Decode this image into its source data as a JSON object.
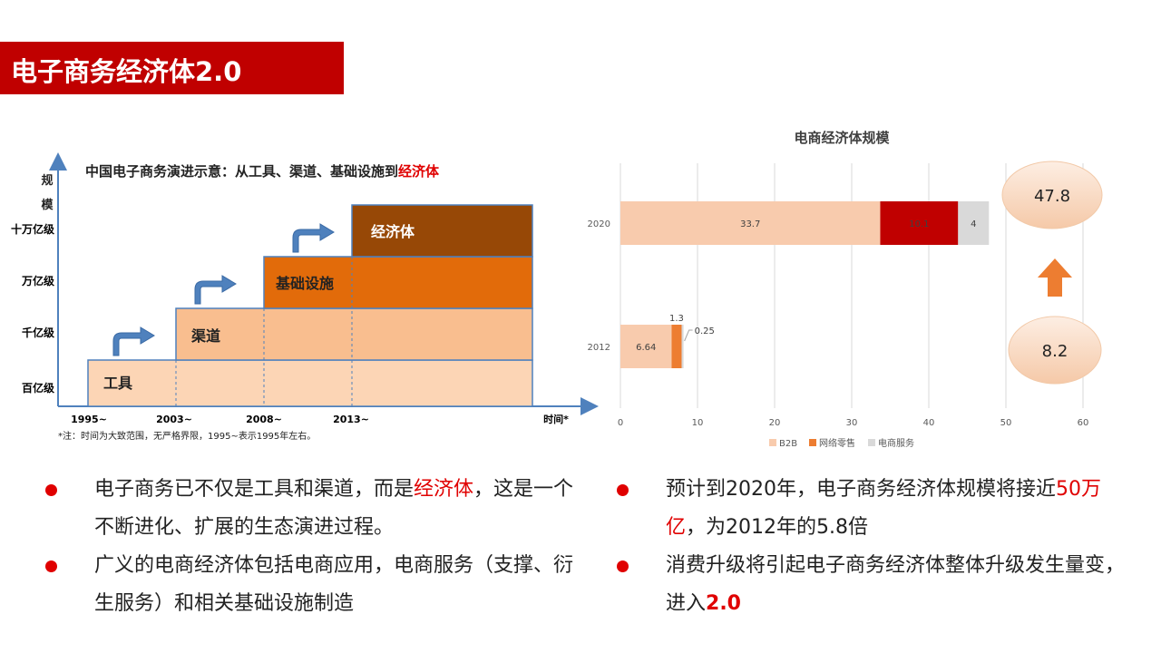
{
  "page_title": "电子商务经济体2.0",
  "left_figure": {
    "title_prefix": "中国电子商务演进示意：从工具、渠道、基础设施到",
    "title_highlight": "经济体",
    "y_axis_label": "规模",
    "y_levels": [
      "十万亿级",
      "万亿级",
      "千亿级",
      "百亿级"
    ],
    "x_axis_label": "时间*",
    "x_ticks": [
      "1995~",
      "2003~",
      "2008~",
      "2013~"
    ],
    "stages": [
      "工具",
      "渠道",
      "基础设施",
      "经济体"
    ],
    "stage_colors": [
      "#fcd5b5",
      "#f9be8f",
      "#e26b0a",
      "#974806"
    ],
    "note": "*注：时间为大致范围，无严格界限，1995~表示1995年左右。"
  },
  "chart_data": {
    "type": "bar",
    "orientation": "horizontal",
    "stacked": true,
    "title": "电商经济体规模",
    "categories": [
      "2020",
      "2012"
    ],
    "series": [
      {
        "name": "B2B",
        "values": [
          33.7,
          6.64
        ],
        "color": "#f8cbad"
      },
      {
        "name": "网络零售",
        "values": [
          10.1,
          1.3
        ],
        "color_by_category": [
          "#c00000",
          "#ed7d31"
        ]
      },
      {
        "name": "电商服务",
        "values": [
          4,
          0.25
        ],
        "color": "#d9d9d9"
      }
    ],
    "data_labels": [
      [
        "33.7",
        "10.1",
        "4"
      ],
      [
        "6.64",
        "1.3",
        "0.25"
      ]
    ],
    "xlim": [
      0,
      60
    ],
    "x_ticks": [
      0,
      10,
      20,
      30,
      40,
      50,
      60
    ],
    "grid": true,
    "legend_position": "bottom"
  },
  "totals": {
    "total_2020": "47.8",
    "total_2012": "8.2",
    "arrow_color": "#ed7d31"
  },
  "bullets_left": [
    {
      "pre": "电子商务已不仅是工具和渠道，而是",
      "highlight": "经济体",
      "post": "，这是一个不断进化、扩展的生态演进过程。"
    },
    {
      "text": "广义的电商经济体包括电商应用，电商服务（支撑、衍生服务）和相关基础设施制造"
    }
  ],
  "bullets_right": [
    {
      "pre": "预计到2020年，电子商务经济体规模将接近",
      "highlight": "50万亿",
      "post": "，为2012年的5.8倍"
    },
    {
      "pre": "消费升级将引起电子商务经济体整体升级发生量变，进入",
      "highlight": "2.0"
    }
  ],
  "colors": {
    "title_bg": "#c00000",
    "accent_red": "#e00000"
  }
}
